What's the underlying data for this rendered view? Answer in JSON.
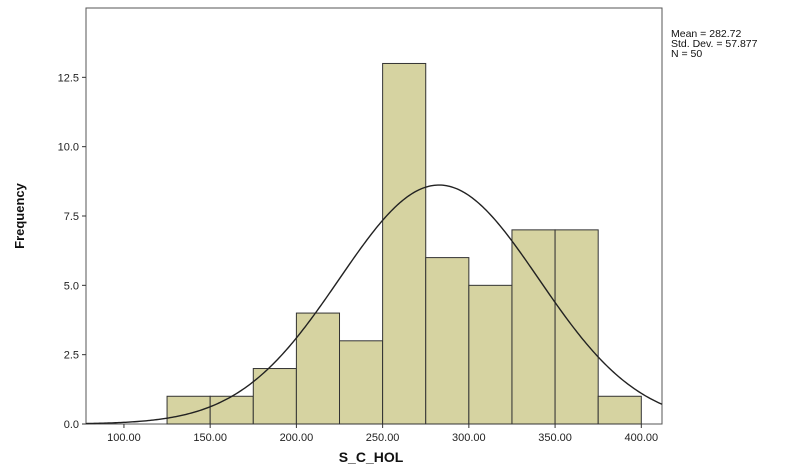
{
  "chart_data": {
    "type": "bar",
    "bins": [
      {
        "x0": 125,
        "x1": 150,
        "value": 1
      },
      {
        "x0": 150,
        "x1": 175,
        "value": 1
      },
      {
        "x0": 175,
        "x1": 200,
        "value": 2
      },
      {
        "x0": 200,
        "x1": 225,
        "value": 4
      },
      {
        "x0": 225,
        "x1": 250,
        "value": 3
      },
      {
        "x0": 250,
        "x1": 275,
        "value": 13
      },
      {
        "x0": 275,
        "x1": 300,
        "value": 6
      },
      {
        "x0": 300,
        "x1": 325,
        "value": 5
      },
      {
        "x0": 325,
        "x1": 350,
        "value": 7
      },
      {
        "x0": 350,
        "x1": 375,
        "value": 7
      },
      {
        "x0": 375,
        "x1": 400,
        "value": 1
      }
    ],
    "x_ticks": [
      "100.00",
      "150.00",
      "200.00",
      "250.00",
      "300.00",
      "350.00",
      "400.00"
    ],
    "y_ticks": [
      "0.0",
      "2.5",
      "5.0",
      "7.5",
      "10.0",
      "12.5"
    ],
    "xlabel": "S_C_HOL",
    "ylabel": "Frequency",
    "xlim": [
      78,
      412
    ],
    "ylim": [
      0,
      15
    ],
    "normal_curve": {
      "mean": 282.72,
      "sd": 57.877,
      "n": 50,
      "bin_width": 25
    },
    "colors": {
      "bar_fill": "#d6d3a1",
      "bar_stroke": "#333333",
      "plot_bg": "#ffffff",
      "curve": "#222222"
    }
  },
  "stats": {
    "mean": "Mean = 282.72",
    "std_dev": "Std. Dev. = 57.877",
    "n": "N = 50"
  }
}
